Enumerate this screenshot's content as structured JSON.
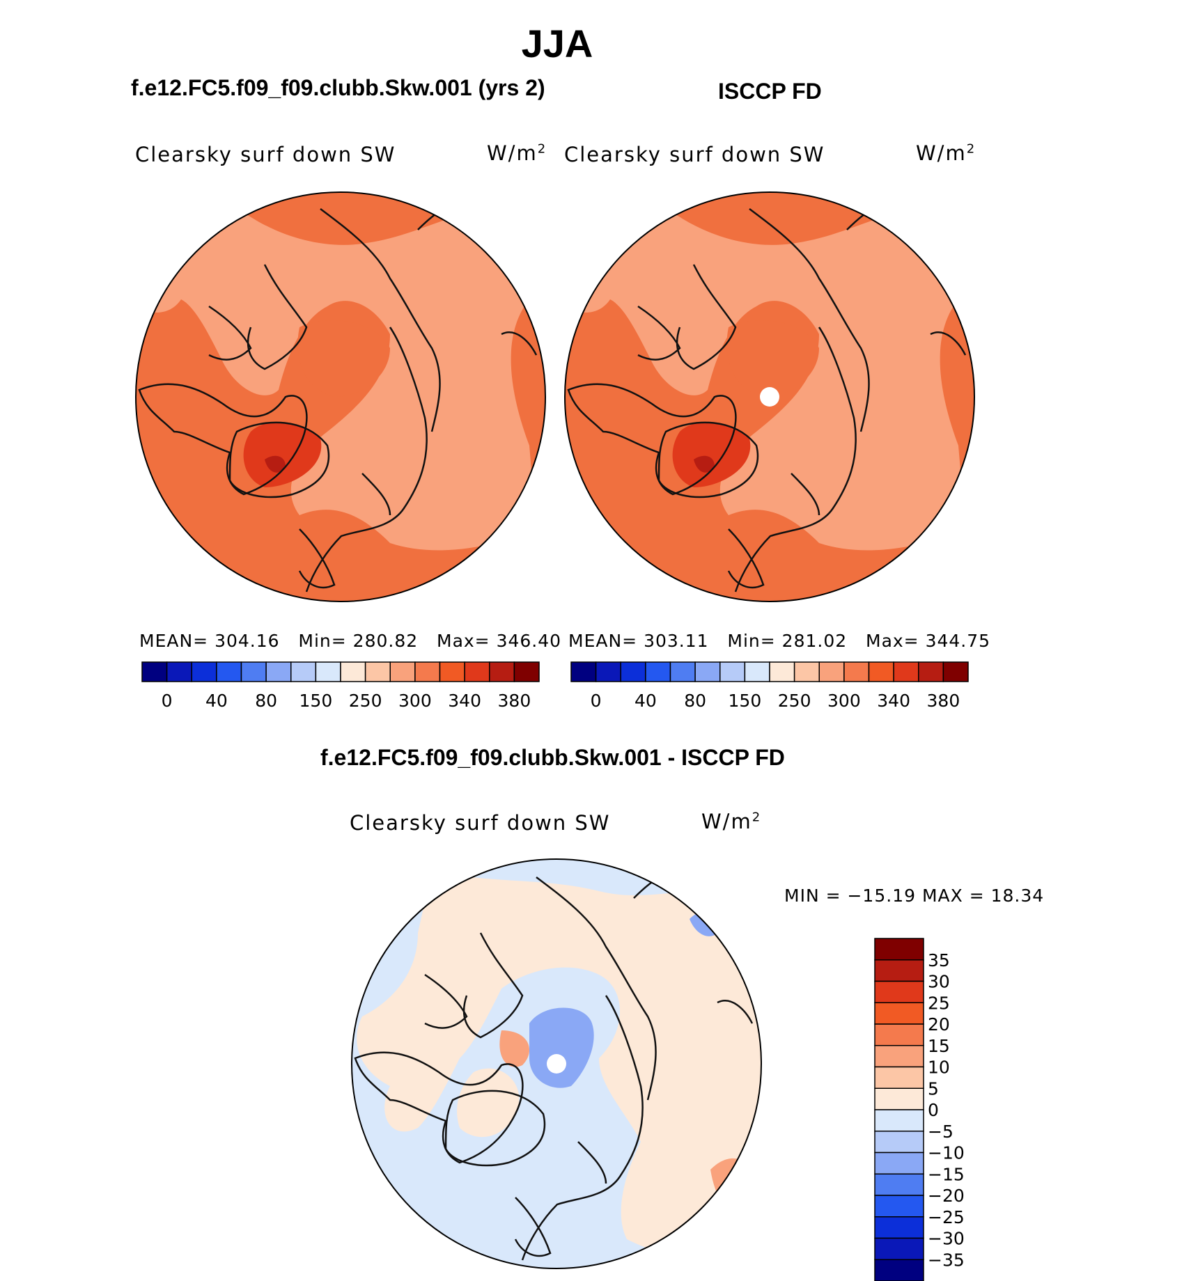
{
  "page_title": "JJA",
  "panels": [
    {
      "case_name": "f.e12.FC5.f09_f09.clubb.Skw.001 (yrs 2)",
      "field": "Clearsky surf down SW",
      "units_base": "W/m",
      "units_exp": "2",
      "mean_label": "MEAN=",
      "mean": "304.16",
      "min_label": "Min=",
      "min": "280.82",
      "max_label": "Max=",
      "max": "346.40"
    },
    {
      "case_name": "ISCCP FD",
      "field": "Clearsky surf down SW",
      "units_base": "W/m",
      "units_exp": "2",
      "mean_label": "MEAN=",
      "mean": "303.11",
      "min_label": "Min=",
      "min": "281.02",
      "max_label": "Max=",
      "max": "344.75"
    }
  ],
  "diff_panel": {
    "title": "f.e12.FC5.f09_f09.clubb.Skw.001 - ISCCP FD",
    "field": "Clearsky surf down SW",
    "units_base": "W/m",
    "units_exp": "2",
    "minmax_text": "MIN = −15.19 MAX =  18.34"
  },
  "colors": {
    "abs_scale": [
      "#000080",
      "#0a18b8",
      "#0c2fd9",
      "#2458f0",
      "#4f7df2",
      "#8aa8f5",
      "#b6cbf8",
      "#d9e8fb",
      "#fde9d8",
      "#fcc6a6",
      "#f9a27c",
      "#f47a4d",
      "#f15a24",
      "#e0391b",
      "#b61d12",
      "#7f0000"
    ],
    "diff_scale": [
      "#000080",
      "#0a18b8",
      "#0c2fd9",
      "#2458f0",
      "#4f7df2",
      "#8aa8f5",
      "#b6cbf8",
      "#d9e8fb",
      "#fde9d8",
      "#fcc6a6",
      "#f9a27c",
      "#f47a4d",
      "#f15a24",
      "#e0391b",
      "#b61d12",
      "#7f0000"
    ],
    "ocean_abs": "#f0703f",
    "land_abs": "#f9a27c",
    "coast": "#111111"
  },
  "chart_data": [
    {
      "type": "heatmap",
      "projection": "north-polar-stereographic",
      "title": "f.e12.FC5.f09_f09.clubb.Skw.001 (yrs 2)",
      "variable": "Clearsky surf down SW",
      "units": "W/m2",
      "mean": 304.16,
      "min": 280.82,
      "max": 346.4,
      "colorbar_labels": [
        "0",
        "40",
        "80",
        "150",
        "250",
        "300",
        "340",
        "380"
      ],
      "colorbar_levels": 16
    },
    {
      "type": "heatmap",
      "projection": "north-polar-stereographic",
      "title": "ISCCP FD",
      "variable": "Clearsky surf down SW",
      "units": "W/m2",
      "mean": 303.11,
      "min": 281.02,
      "max": 344.75,
      "colorbar_labels": [
        "0",
        "40",
        "80",
        "150",
        "250",
        "300",
        "340",
        "380"
      ],
      "colorbar_levels": 16
    },
    {
      "type": "heatmap",
      "projection": "north-polar-stereographic",
      "title": "f.e12.FC5.f09_f09.clubb.Skw.001 - ISCCP FD",
      "variable": "Clearsky surf down SW",
      "units": "W/m2",
      "min": -15.19,
      "max": 18.34,
      "colorbar_labels": [
        "35",
        "30",
        "25",
        "20",
        "15",
        "10",
        "5",
        "0",
        "−5",
        "−10",
        "−15",
        "−20",
        "−25",
        "−30",
        "−35"
      ],
      "colorbar_levels": 16
    }
  ]
}
